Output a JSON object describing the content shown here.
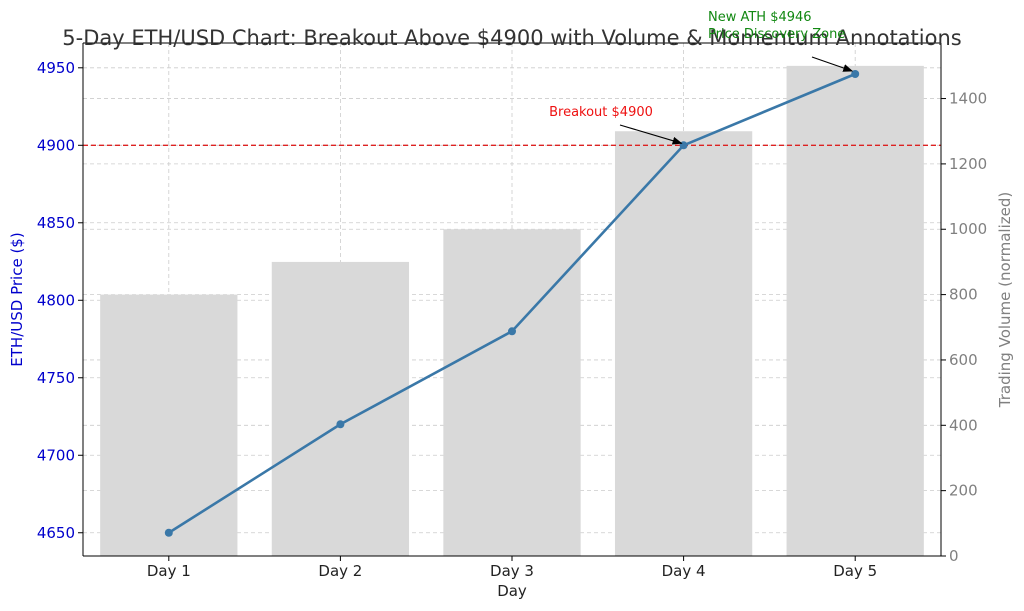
{
  "chart_data": {
    "type": "bar+line",
    "title": "5-Day ETH/USD Chart: Breakout Above $4900 with Volume & Momentum Annotations",
    "xlabel": "Day",
    "categories": [
      "Day 1",
      "Day 2",
      "Day 3",
      "Day 4",
      "Day 5"
    ],
    "price": {
      "axis_label": "ETH/USD Price ($)",
      "values": [
        4650,
        4720,
        4780,
        4900,
        4946
      ],
      "ylim": [
        4635,
        4966
      ],
      "ticks": [
        4650,
        4700,
        4750,
        4800,
        4850,
        4900,
        4950
      ],
      "color": "#3a78a8",
      "axis_color": "#0000cc"
    },
    "volume": {
      "axis_label": "Trading Volume (normalized)",
      "values": [
        800,
        900,
        1000,
        1300,
        1500
      ],
      "ylim": [
        0,
        1570
      ],
      "ticks": [
        0,
        200,
        400,
        600,
        800,
        1000,
        1200,
        1400
      ],
      "color": "#d9d9d9",
      "axis_color": "#808080"
    },
    "reference_line": {
      "value": 4900,
      "color": "#dd2222"
    },
    "annotations": [
      {
        "label": "Breakout $4900",
        "category": "Day 4",
        "value": 4900,
        "color": "#ee1111"
      },
      {
        "label": "New ATH $4946",
        "label2": "Price Discovery Zone",
        "category": "Day 5",
        "value": 4946,
        "color": "#118811"
      }
    ],
    "grid": true
  }
}
